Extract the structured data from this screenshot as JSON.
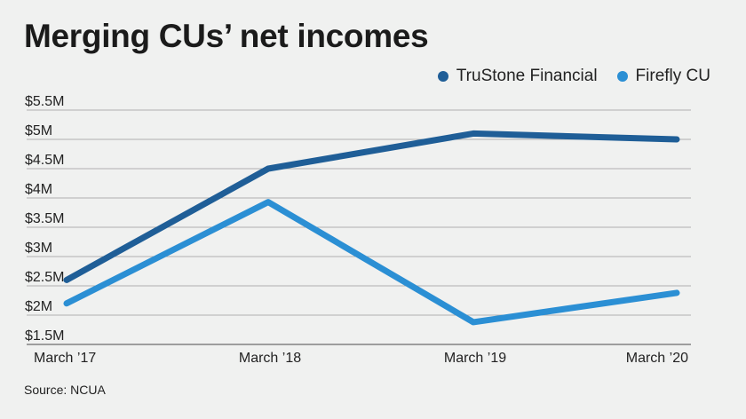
{
  "title": "Merging CUs’ net incomes",
  "source": "Source: NCUA",
  "chart_data": {
    "type": "line",
    "title": "Merging CUs’ net incomes",
    "x": [
      "March '17",
      "March '18",
      "March '19",
      "March '20"
    ],
    "x_labels": [
      "March ’17",
      "March ’18",
      "March ’19",
      "March ’20"
    ],
    "ylim": [
      1.5,
      5.5
    ],
    "y_ticks": [
      1.5,
      2,
      2.5,
      3,
      3.5,
      4,
      4.5,
      5,
      5.5
    ],
    "y_tick_labels": [
      "$1.5M",
      "$2M",
      "$2.5M",
      "$3M",
      "$3.5M",
      "$4M",
      "$4.5M",
      "$5M",
      "$5.5M"
    ],
    "grid": true,
    "legend_position": "top-right",
    "series": [
      {
        "name": "TruStone Financial",
        "color": "#1f5e97",
        "values": [
          2.6,
          4.5,
          5.1,
          5.0
        ]
      },
      {
        "name": "Firefly CU",
        "color": "#2b8fd4",
        "values": [
          2.2,
          3.93,
          1.88,
          2.38
        ]
      }
    ]
  }
}
